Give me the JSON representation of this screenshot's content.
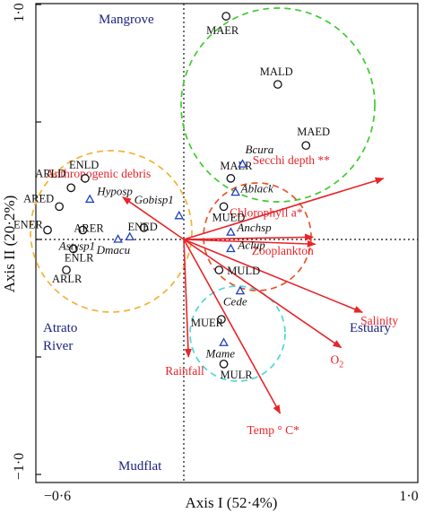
{
  "chart_data": {
    "type": "scatter",
    "title": "",
    "xlabel": "Axis I (52·4%)",
    "ylabel": "Axis II (20·2%)",
    "xlim": [
      -0.6,
      1.0
    ],
    "ylim": [
      -1.0,
      1.0
    ],
    "x_ticks": [
      "−0·6",
      "1·0"
    ],
    "y_ticks": [
      "1·0",
      "−1·0"
    ],
    "grid": false,
    "colors": {
      "sites": "#111111",
      "species": "#1f3fbf",
      "vectors": "#e8242a",
      "regions": "#1a237e",
      "circle_mangrove": "#3ecc2e",
      "circle_atrato": "#f2b233",
      "circle_estuary": "#e8552a",
      "circle_mudflat": "#4fd6d6"
    },
    "sites": [
      {
        "name": "MAER",
        "x": 0.18,
        "y": 0.95
      },
      {
        "name": "MALD",
        "x": 0.4,
        "y": 0.66
      },
      {
        "name": "MAED",
        "x": 0.52,
        "y": 0.4
      },
      {
        "name": "MALR",
        "x": 0.2,
        "y": 0.26
      },
      {
        "name": "MUED",
        "x": 0.17,
        "y": 0.14
      },
      {
        "name": "ENLD",
        "x": -0.42,
        "y": 0.26
      },
      {
        "name": "ARLD",
        "x": -0.48,
        "y": 0.22
      },
      {
        "name": "ARED",
        "x": -0.53,
        "y": 0.14
      },
      {
        "name": "ENER",
        "x": -0.58,
        "y": 0.04
      },
      {
        "name": "ARER",
        "x": -0.43,
        "y": 0.04
      },
      {
        "name": "ENED",
        "x": -0.17,
        "y": 0.05
      },
      {
        "name": "ENLR",
        "x": -0.47,
        "y": -0.04
      },
      {
        "name": "ARLR",
        "x": -0.5,
        "y": -0.13
      },
      {
        "name": "MULD",
        "x": 0.15,
        "y": -0.13
      },
      {
        "name": "MUER",
        "x": 0.16,
        "y": -0.34
      },
      {
        "name": "MULR",
        "x": 0.17,
        "y": -0.53
      }
    ],
    "species": [
      {
        "name": "Bcura",
        "x": 0.25,
        "y": 0.32
      },
      {
        "name": "Hyposp",
        "x": -0.4,
        "y": 0.17
      },
      {
        "name": "Ablack",
        "x": 0.22,
        "y": 0.2
      },
      {
        "name": "Gobisp1",
        "x": -0.02,
        "y": 0.1
      },
      {
        "name": "Anchsp",
        "x": 0.2,
        "y": 0.03
      },
      {
        "name": "Astysp1",
        "x": -0.23,
        "y": 0.01
      },
      {
        "name": "Dmacu",
        "x": -0.28,
        "y": 0.0
      },
      {
        "name": "Aclup",
        "x": 0.2,
        "y": -0.04
      },
      {
        "name": "Cede",
        "x": 0.24,
        "y": -0.22
      },
      {
        "name": "Mame",
        "x": 0.17,
        "y": -0.44
      }
    ],
    "vectors": [
      {
        "name": "Secchi depth **",
        "x": 0.85,
        "y": 0.26
      },
      {
        "name": "Anthropogenic debris",
        "x": -0.26,
        "y": 0.18
      },
      {
        "name": "Chlorophyll a*",
        "x": 0.55,
        "y": 0.01
      },
      {
        "name": "Zooplankton",
        "x": 0.56,
        "y": -0.02
      },
      {
        "name": "Salinity",
        "x": 0.76,
        "y": -0.31
      },
      {
        "name": "O2",
        "x": 0.67,
        "y": -0.46
      },
      {
        "name": "Rainfall",
        "x": 0.02,
        "y": -0.5
      },
      {
        "name": "Temp ° C*",
        "x": 0.41,
        "y": -0.74
      }
    ],
    "region_labels": [
      "Mangrove",
      "Atrato",
      "River",
      "Estuary",
      "Mudflat"
    ]
  }
}
